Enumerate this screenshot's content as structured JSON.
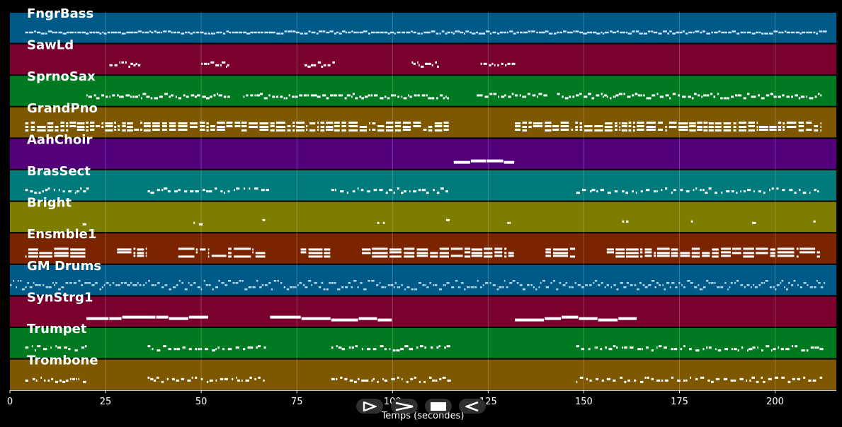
{
  "chart_data": {
    "type": "piano-roll",
    "xlabel": "Temps (secondes)",
    "xlim": [
      0,
      216
    ],
    "x_ticks": [
      0,
      25,
      50,
      75,
      100,
      125,
      150,
      175,
      200
    ],
    "grid": true,
    "tracks": [
      {
        "name": "FngrBass",
        "color": "#005a87",
        "note_color": "#cfe3ff",
        "segments": [
          [
            4,
            213
          ]
        ],
        "style": "dense"
      },
      {
        "name": "SawLd",
        "color": "#7a0030",
        "note_color": "#ffffff",
        "segments": [
          [
            26,
            34
          ],
          [
            50,
            57
          ],
          [
            77,
            85
          ],
          [
            105,
            112
          ],
          [
            123,
            132
          ]
        ],
        "style": "phrases"
      },
      {
        "name": "SprnoSax",
        "color": "#007a20",
        "note_color": "#ffffff",
        "segments": [
          [
            20,
            57
          ],
          [
            61,
            115
          ],
          [
            122,
            140
          ],
          [
            143,
            212
          ]
        ],
        "style": "phrases"
      },
      {
        "name": "GrandPno",
        "color": "#7d5800",
        "note_color": "#ffffff",
        "segments": [
          [
            4,
            115
          ],
          [
            132,
            212
          ]
        ],
        "style": "chords"
      },
      {
        "name": "AahChoir",
        "color": "#52007a",
        "note_color": "#ffffff",
        "segments": [
          [
            116,
            132
          ]
        ],
        "style": "sustain"
      },
      {
        "name": "BrasSect",
        "color": "#007a7a",
        "note_color": "#ffffff",
        "segments": [
          [
            4,
            20
          ],
          [
            36,
            67
          ],
          [
            84,
            115
          ],
          [
            148,
            212
          ]
        ],
        "style": "hits"
      },
      {
        "name": "Bright",
        "color": "#7d7d00",
        "note_color": "#ffffff",
        "segments": [
          [
            19,
            20
          ],
          [
            48,
            50
          ],
          [
            66,
            67
          ],
          [
            96,
            98
          ],
          [
            114,
            115
          ],
          [
            130,
            131
          ],
          [
            160,
            162
          ],
          [
            178,
            179
          ],
          [
            194,
            195
          ],
          [
            210,
            211
          ]
        ],
        "style": "hits"
      },
      {
        "name": "Ensmble1",
        "color": "#7a2500",
        "note_color": "#ffffff",
        "segments": [
          [
            4,
            20
          ],
          [
            28,
            36
          ],
          [
            44,
            67
          ],
          [
            76,
            84
          ],
          [
            92,
            132
          ],
          [
            140,
            148
          ],
          [
            156,
            212
          ]
        ],
        "style": "pads"
      },
      {
        "name": "GM Drums",
        "color": "#005a87",
        "note_color": "#b9d7ea",
        "segments": [
          [
            0,
            213
          ]
        ],
        "style": "drums"
      },
      {
        "name": "SynStrg1",
        "color": "#7a0030",
        "note_color": "#ffffff",
        "segments": [
          [
            20,
            52
          ],
          [
            68,
            100
          ],
          [
            132,
            164
          ]
        ],
        "style": "sustain"
      },
      {
        "name": "Trumpet",
        "color": "#007a20",
        "note_color": "#ffffff",
        "segments": [
          [
            4,
            20
          ],
          [
            36,
            67
          ],
          [
            84,
            115
          ],
          [
            148,
            212
          ]
        ],
        "style": "hits"
      },
      {
        "name": "Trombone",
        "color": "#7d5800",
        "note_color": "#ffffff",
        "segments": [
          [
            4,
            20
          ],
          [
            36,
            67
          ],
          [
            84,
            115
          ],
          [
            148,
            212
          ]
        ],
        "style": "hits"
      }
    ]
  },
  "controls": {
    "buttons": [
      {
        "name": "play-outline-icon"
      },
      {
        "name": "forward-icon"
      },
      {
        "name": "stop-icon"
      },
      {
        "name": "rewind-icon"
      }
    ]
  }
}
